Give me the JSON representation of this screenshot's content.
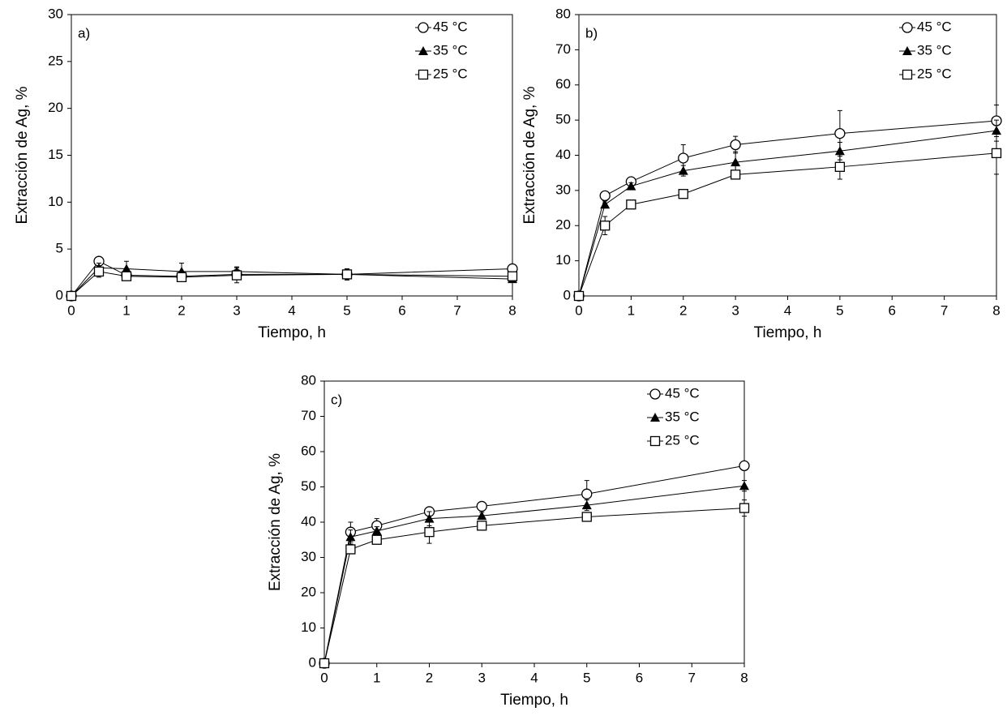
{
  "chart_data": [
    {
      "type": "line",
      "annotation": "a)",
      "xlabel": "Tiempo, h",
      "ylabel": "Extracción de Ag, %",
      "x": [
        0,
        0.5,
        1,
        2,
        3,
        5,
        8
      ],
      "xlim": [
        0,
        8
      ],
      "xticks": [
        0,
        1,
        2,
        3,
        4,
        5,
        6,
        7,
        8
      ],
      "ylim": [
        0,
        30
      ],
      "yticks": [
        0,
        5,
        10,
        15,
        20,
        25,
        30
      ],
      "legend": "upper right",
      "series": [
        {
          "name": "45 °C",
          "color": "#000000",
          "marker": "circle",
          "values": [
            0,
            3.7,
            2.2,
            2.1,
            2.3,
            2.3,
            2.9
          ],
          "errors": [
            0,
            0.3,
            0.3,
            0.3,
            0.3,
            0.3,
            0.3
          ]
        },
        {
          "name": "35 °C",
          "color": "#000000",
          "marker": "triangle",
          "values": [
            0,
            3.0,
            2.9,
            2.6,
            2.6,
            2.3,
            1.8
          ],
          "errors": [
            0,
            0.5,
            0.8,
            0.9,
            0.5,
            0.5,
            0.3
          ]
        },
        {
          "name": "25 °C",
          "color": "#000000",
          "marker": "square",
          "values": [
            0,
            2.6,
            2.1,
            2.0,
            2.2,
            2.3,
            2.1
          ],
          "errors": [
            0,
            0.6,
            0.3,
            0.3,
            0.8,
            0.6,
            0.4
          ]
        }
      ]
    },
    {
      "type": "line",
      "annotation": "b)",
      "xlabel": "Tiempo, h",
      "ylabel": "Extracción de Ag, %",
      "x": [
        0,
        0.5,
        1,
        2,
        3,
        5,
        8
      ],
      "xlim": [
        0,
        8
      ],
      "xticks": [
        0,
        1,
        2,
        3,
        4,
        5,
        6,
        7,
        8
      ],
      "ylim": [
        0,
        80
      ],
      "yticks": [
        0,
        10,
        20,
        30,
        40,
        50,
        60,
        70,
        80
      ],
      "legend": "upper right",
      "series": [
        {
          "name": "45 °C",
          "color": "#000000",
          "marker": "circle",
          "values": [
            0,
            28.5,
            32.5,
            39.2,
            43,
            46.2,
            49.8
          ],
          "errors": [
            0,
            0.8,
            1,
            3.8,
            2.4,
            6.5,
            4.5
          ]
        },
        {
          "name": "35 °C",
          "color": "#000000",
          "marker": "triangle",
          "values": [
            0,
            26,
            31.2,
            35.6,
            38,
            41.2,
            47
          ],
          "errors": [
            0,
            1,
            1,
            1.5,
            3,
            2.5,
            3
          ]
        },
        {
          "name": "25 °C",
          "color": "#000000",
          "marker": "square",
          "values": [
            0,
            20,
            26,
            29,
            34.5,
            36.7,
            40.6
          ],
          "errors": [
            0,
            2.6,
            0.5,
            0.5,
            1,
            3.5,
            6
          ]
        }
      ]
    },
    {
      "type": "line",
      "annotation": "c)",
      "xlabel": "Tiempo, h",
      "ylabel": "Extracción de Ag, %",
      "x": [
        0,
        0.5,
        1,
        2,
        3,
        5,
        8
      ],
      "xlim": [
        0,
        8
      ],
      "xticks": [
        0,
        1,
        2,
        3,
        4,
        5,
        6,
        7,
        8
      ],
      "ylim": [
        0,
        80
      ],
      "yticks": [
        0,
        10,
        20,
        30,
        40,
        50,
        60,
        70,
        80
      ],
      "legend": "upper right",
      "series": [
        {
          "name": "45 °C",
          "color": "#000000",
          "marker": "circle",
          "values": [
            0,
            37.2,
            39,
            43,
            44.5,
            48,
            56
          ],
          "errors": [
            0,
            2.8,
            2,
            0.5,
            0.5,
            3.8,
            0.5
          ]
        },
        {
          "name": "35 °C",
          "color": "#000000",
          "marker": "triangle",
          "values": [
            0,
            35.8,
            37.5,
            41,
            41.8,
            44.8,
            50.3
          ],
          "errors": [
            0,
            2,
            1.2,
            2,
            1,
            1.5,
            1.5
          ]
        },
        {
          "name": "25 °C",
          "color": "#000000",
          "marker": "square",
          "values": [
            0,
            32.3,
            35,
            37.2,
            39,
            41.5,
            44
          ],
          "errors": [
            0,
            1.2,
            0.8,
            3.2,
            0.8,
            0.8,
            2.3
          ]
        }
      ]
    }
  ]
}
